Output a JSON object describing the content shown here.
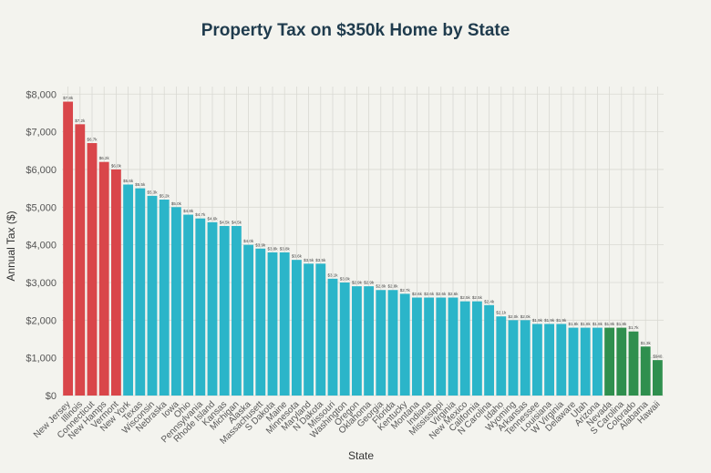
{
  "chart_data": {
    "type": "bar",
    "title": "Property Tax on $350k Home by State",
    "xlabel": "State",
    "ylabel": "Annual Tax ($)",
    "ylim": [
      0,
      8200
    ],
    "yticks": [
      "$0",
      "$1,000",
      "$2,000",
      "$3,000",
      "$4,000",
      "$5,000",
      "$6,000",
      "$7,000",
      "$8,000"
    ],
    "grid": true,
    "colors": {
      "high": "#d9464a",
      "mid": "#2bb5c9",
      "low": "#2f8f4e"
    },
    "categories": [
      "New Jersey",
      "Illinois",
      "Connecticut",
      "New Hamps",
      "Vermont",
      "New York",
      "Texas",
      "Wisconsin",
      "Nebraska",
      "Iowa",
      "Ohio",
      "Pennsylvania",
      "Rhode Island",
      "Kansas",
      "Michigan",
      "Alaska",
      "Massachusett",
      "S Dakota",
      "Maine",
      "Minnesota",
      "Maryland",
      "N Dakota",
      "Missouri",
      "Washington",
      "Oregon",
      "Oklahoma",
      "Georgia",
      "Florida",
      "Kentucky",
      "Montana",
      "Indiana",
      "Mississippi",
      "Virginia",
      "New Mexico",
      "California",
      "N Carolina",
      "Idaho",
      "Wyoming",
      "Arkansas",
      "Tennessee",
      "Louisiana",
      "W Virginia",
      "Delaware",
      "Utah",
      "Arizona",
      "Nevada",
      "S Carolina",
      "Colorado",
      "Alabama",
      "Hawaii"
    ],
    "values": [
      7800,
      7200,
      6700,
      6200,
      6000,
      5600,
      5500,
      5300,
      5200,
      5000,
      4800,
      4700,
      4600,
      4500,
      4500,
      4000,
      3900,
      3800,
      3800,
      3600,
      3500,
      3500,
      3100,
      3000,
      2900,
      2900,
      2800,
      2800,
      2700,
      2600,
      2600,
      2600,
      2600,
      2500,
      2500,
      2400,
      2100,
      2000,
      2000,
      1900,
      1900,
      1900,
      1800,
      1800,
      1800,
      1800,
      1800,
      1700,
      1300,
      940
    ],
    "data_labels": [
      "$7.8k",
      "$7.2k",
      "$6.7k",
      "$6.2k",
      "$6.0k",
      "$5.6k",
      "$5.5k",
      "$5.3k",
      "$5.2k",
      "$5.0k",
      "$4.8k",
      "$4.7k",
      "$4.6k",
      "$4.5k",
      "$4.5k",
      "$4.0k",
      "$3.9k",
      "$3.8k",
      "$3.8k",
      "$3.6k",
      "$3.5k",
      "$3.5k",
      "$3.1k",
      "$3.0k",
      "$2.9k",
      "$2.9k",
      "$2.8k",
      "$2.8k",
      "$2.7k",
      "$2.6k",
      "$2.6k",
      "$2.6k",
      "$2.6k",
      "$2.5k",
      "$2.5k",
      "$2.4k",
      "$2.1k",
      "$2.0k",
      "$2.0k",
      "$1.9k",
      "$1.9k",
      "$1.9k",
      "$1.8k",
      "$1.8k",
      "$1.8k",
      "$1.8k",
      "$1.8k",
      "$1.7k",
      "$1.3k",
      "$940"
    ],
    "groups": [
      "high",
      "high",
      "high",
      "high",
      "high",
      "mid",
      "mid",
      "mid",
      "mid",
      "mid",
      "mid",
      "mid",
      "mid",
      "mid",
      "mid",
      "mid",
      "mid",
      "mid",
      "mid",
      "mid",
      "mid",
      "mid",
      "mid",
      "mid",
      "mid",
      "mid",
      "mid",
      "mid",
      "mid",
      "mid",
      "mid",
      "mid",
      "mid",
      "mid",
      "mid",
      "mid",
      "mid",
      "mid",
      "mid",
      "mid",
      "mid",
      "mid",
      "mid",
      "mid",
      "mid",
      "low",
      "low",
      "low",
      "low",
      "low"
    ]
  }
}
